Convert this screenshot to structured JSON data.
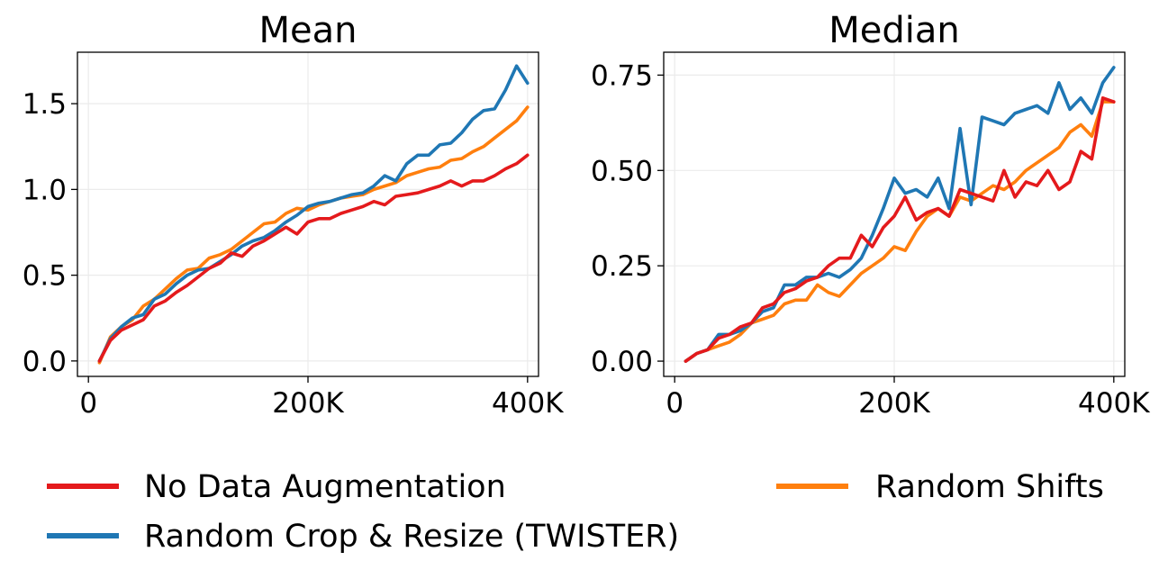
{
  "chart_data": [
    {
      "type": "line",
      "title": "Mean",
      "xlabel": "",
      "ylabel": "",
      "xlim": [
        -10000,
        410000
      ],
      "ylim": [
        -0.09,
        1.8
      ],
      "x_ticks": [
        0,
        200000,
        400000
      ],
      "x_tick_labels": [
        "0",
        "200K",
        "400K"
      ],
      "y_ticks": [
        0.0,
        0.5,
        1.0,
        1.5
      ],
      "y_tick_labels": [
        "0.0",
        "0.5",
        "1.0",
        "1.5"
      ],
      "grid": true,
      "x": [
        10000,
        20000,
        30000,
        40000,
        50000,
        60000,
        70000,
        80000,
        90000,
        100000,
        110000,
        120000,
        130000,
        140000,
        150000,
        160000,
        170000,
        180000,
        190000,
        200000,
        210000,
        220000,
        230000,
        240000,
        250000,
        260000,
        270000,
        280000,
        290000,
        300000,
        310000,
        320000,
        330000,
        340000,
        350000,
        360000,
        370000,
        380000,
        390000,
        400000
      ],
      "series": [
        {
          "name": "No Data Augmentation",
          "color": "#e41a1c",
          "values": [
            0.0,
            0.12,
            0.18,
            0.21,
            0.24,
            0.32,
            0.35,
            0.4,
            0.44,
            0.49,
            0.54,
            0.57,
            0.63,
            0.61,
            0.67,
            0.7,
            0.74,
            0.78,
            0.74,
            0.81,
            0.83,
            0.83,
            0.86,
            0.88,
            0.9,
            0.93,
            0.91,
            0.96,
            0.97,
            0.98,
            1.0,
            1.02,
            1.05,
            1.02,
            1.05,
            1.05,
            1.08,
            1.12,
            1.15,
            1.2
          ]
        },
        {
          "name": "Random Crop & Resize (TWISTER)",
          "color": "#1f77b4",
          "values": [
            0.0,
            0.13,
            0.2,
            0.25,
            0.27,
            0.36,
            0.39,
            0.45,
            0.5,
            0.53,
            0.54,
            0.58,
            0.62,
            0.67,
            0.7,
            0.72,
            0.76,
            0.81,
            0.85,
            0.9,
            0.92,
            0.93,
            0.95,
            0.97,
            0.98,
            1.02,
            1.08,
            1.05,
            1.15,
            1.2,
            1.2,
            1.26,
            1.27,
            1.33,
            1.41,
            1.46,
            1.47,
            1.58,
            1.72,
            1.62
          ]
        },
        {
          "name": "Random Shifts",
          "color": "#ff7f0e",
          "values": [
            -0.01,
            0.14,
            0.2,
            0.24,
            0.32,
            0.36,
            0.42,
            0.48,
            0.53,
            0.54,
            0.6,
            0.62,
            0.65,
            0.7,
            0.75,
            0.8,
            0.81,
            0.86,
            0.89,
            0.88,
            0.91,
            0.93,
            0.95,
            0.96,
            0.97,
            1.0,
            1.02,
            1.04,
            1.08,
            1.1,
            1.12,
            1.13,
            1.17,
            1.18,
            1.22,
            1.25,
            1.3,
            1.35,
            1.4,
            1.48
          ]
        }
      ]
    },
    {
      "type": "line",
      "title": "Median",
      "xlabel": "",
      "ylabel": "",
      "xlim": [
        -10000,
        410000
      ],
      "ylim": [
        -0.04,
        0.81
      ],
      "x_ticks": [
        0,
        200000,
        400000
      ],
      "x_tick_labels": [
        "0",
        "200K",
        "400K"
      ],
      "y_ticks": [
        0.0,
        0.25,
        0.5,
        0.75
      ],
      "y_tick_labels": [
        "0.00",
        "0.25",
        "0.50",
        "0.75"
      ],
      "grid": true,
      "x": [
        10000,
        20000,
        30000,
        40000,
        50000,
        60000,
        70000,
        80000,
        90000,
        100000,
        110000,
        120000,
        130000,
        140000,
        150000,
        160000,
        170000,
        180000,
        190000,
        200000,
        210000,
        220000,
        230000,
        240000,
        250000,
        260000,
        270000,
        280000,
        290000,
        300000,
        310000,
        320000,
        330000,
        340000,
        350000,
        360000,
        370000,
        380000,
        390000,
        400000
      ],
      "series": [
        {
          "name": "No Data Augmentation",
          "color": "#e41a1c",
          "values": [
            0.0,
            0.02,
            0.03,
            0.06,
            0.07,
            0.09,
            0.1,
            0.14,
            0.15,
            0.18,
            0.19,
            0.21,
            0.22,
            0.25,
            0.27,
            0.27,
            0.33,
            0.3,
            0.35,
            0.38,
            0.43,
            0.37,
            0.39,
            0.4,
            0.38,
            0.45,
            0.44,
            0.43,
            0.42,
            0.5,
            0.43,
            0.47,
            0.46,
            0.5,
            0.45,
            0.47,
            0.55,
            0.53,
            0.69,
            0.68
          ]
        },
        {
          "name": "Random Crop & Resize (TWISTER)",
          "color": "#1f77b4",
          "values": [
            0.0,
            0.02,
            0.03,
            0.07,
            0.07,
            0.08,
            0.1,
            0.13,
            0.14,
            0.2,
            0.2,
            0.22,
            0.22,
            0.23,
            0.22,
            0.24,
            0.27,
            0.33,
            0.4,
            0.48,
            0.44,
            0.45,
            0.43,
            0.48,
            0.4,
            0.61,
            0.41,
            0.64,
            0.63,
            0.62,
            0.65,
            0.66,
            0.67,
            0.65,
            0.73,
            0.66,
            0.69,
            0.65,
            0.73,
            0.77
          ]
        },
        {
          "name": "Random Shifts",
          "color": "#ff7f0e",
          "values": [
            0.0,
            0.02,
            0.03,
            0.04,
            0.05,
            0.07,
            0.1,
            0.11,
            0.12,
            0.15,
            0.16,
            0.16,
            0.2,
            0.18,
            0.17,
            0.2,
            0.23,
            0.25,
            0.27,
            0.3,
            0.29,
            0.34,
            0.38,
            0.4,
            0.38,
            0.43,
            0.42,
            0.44,
            0.46,
            0.45,
            0.47,
            0.5,
            0.52,
            0.54,
            0.56,
            0.6,
            0.62,
            0.59,
            0.68,
            0.68
          ]
        }
      ]
    }
  ],
  "legend": {
    "placement": "bottom",
    "entries": [
      {
        "label": "No Data Augmentation",
        "color": "#e41a1c"
      },
      {
        "label": "Random Crop & Resize (TWISTER)",
        "color": "#1f77b4"
      },
      {
        "label": "Random Shifts",
        "color": "#ff7f0e"
      }
    ]
  }
}
